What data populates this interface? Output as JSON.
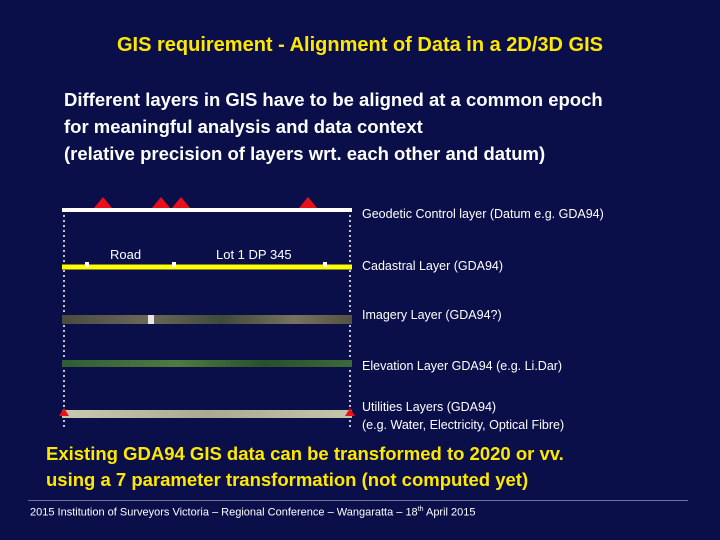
{
  "slide": {
    "title": "GIS requirement - Alignment of Data in a 2D/3D GIS",
    "intro_lines": [
      "Different layers in GIS have to be aligned at a common epoch",
      "for meaningful analysis and data context",
      "(relative precision of layers wrt. each other and datum)"
    ],
    "layers": [
      {
        "label": "Geodetic Control layer (Datum e.g. GDA94)"
      },
      {
        "label": "Cadastral Layer (GDA94)"
      },
      {
        "label": "Imagery Layer (GDA94?)"
      },
      {
        "label": "Elevation Layer GDA94 (e.g. Li.Dar)"
      },
      {
        "label_line1": "Utilities Layers (GDA94)",
        "label_line2": "(e.g. Water, Electricity, Optical Fibre)"
      }
    ],
    "diagram": {
      "road_label": "Road",
      "lot_label": "Lot 1 DP 345",
      "colors": {
        "control_marker": "#e8101a",
        "cadastral_line": "#ffff00",
        "imagery": "#5c5a4e",
        "elevation": "#2e5a32",
        "utilities": "#b4b69e"
      }
    },
    "conclusion_lines": [
      "Existing GDA94 GIS data can be transformed to 2020 or vv.",
      "using a 7 parameter transformation (not computed yet)"
    ],
    "footer": {
      "text_before": "2015 Institution of Surveyors Victoria – Regional Conference – Wangaratta – 18",
      "superscript": "th",
      "text_after": " April 2015"
    }
  }
}
